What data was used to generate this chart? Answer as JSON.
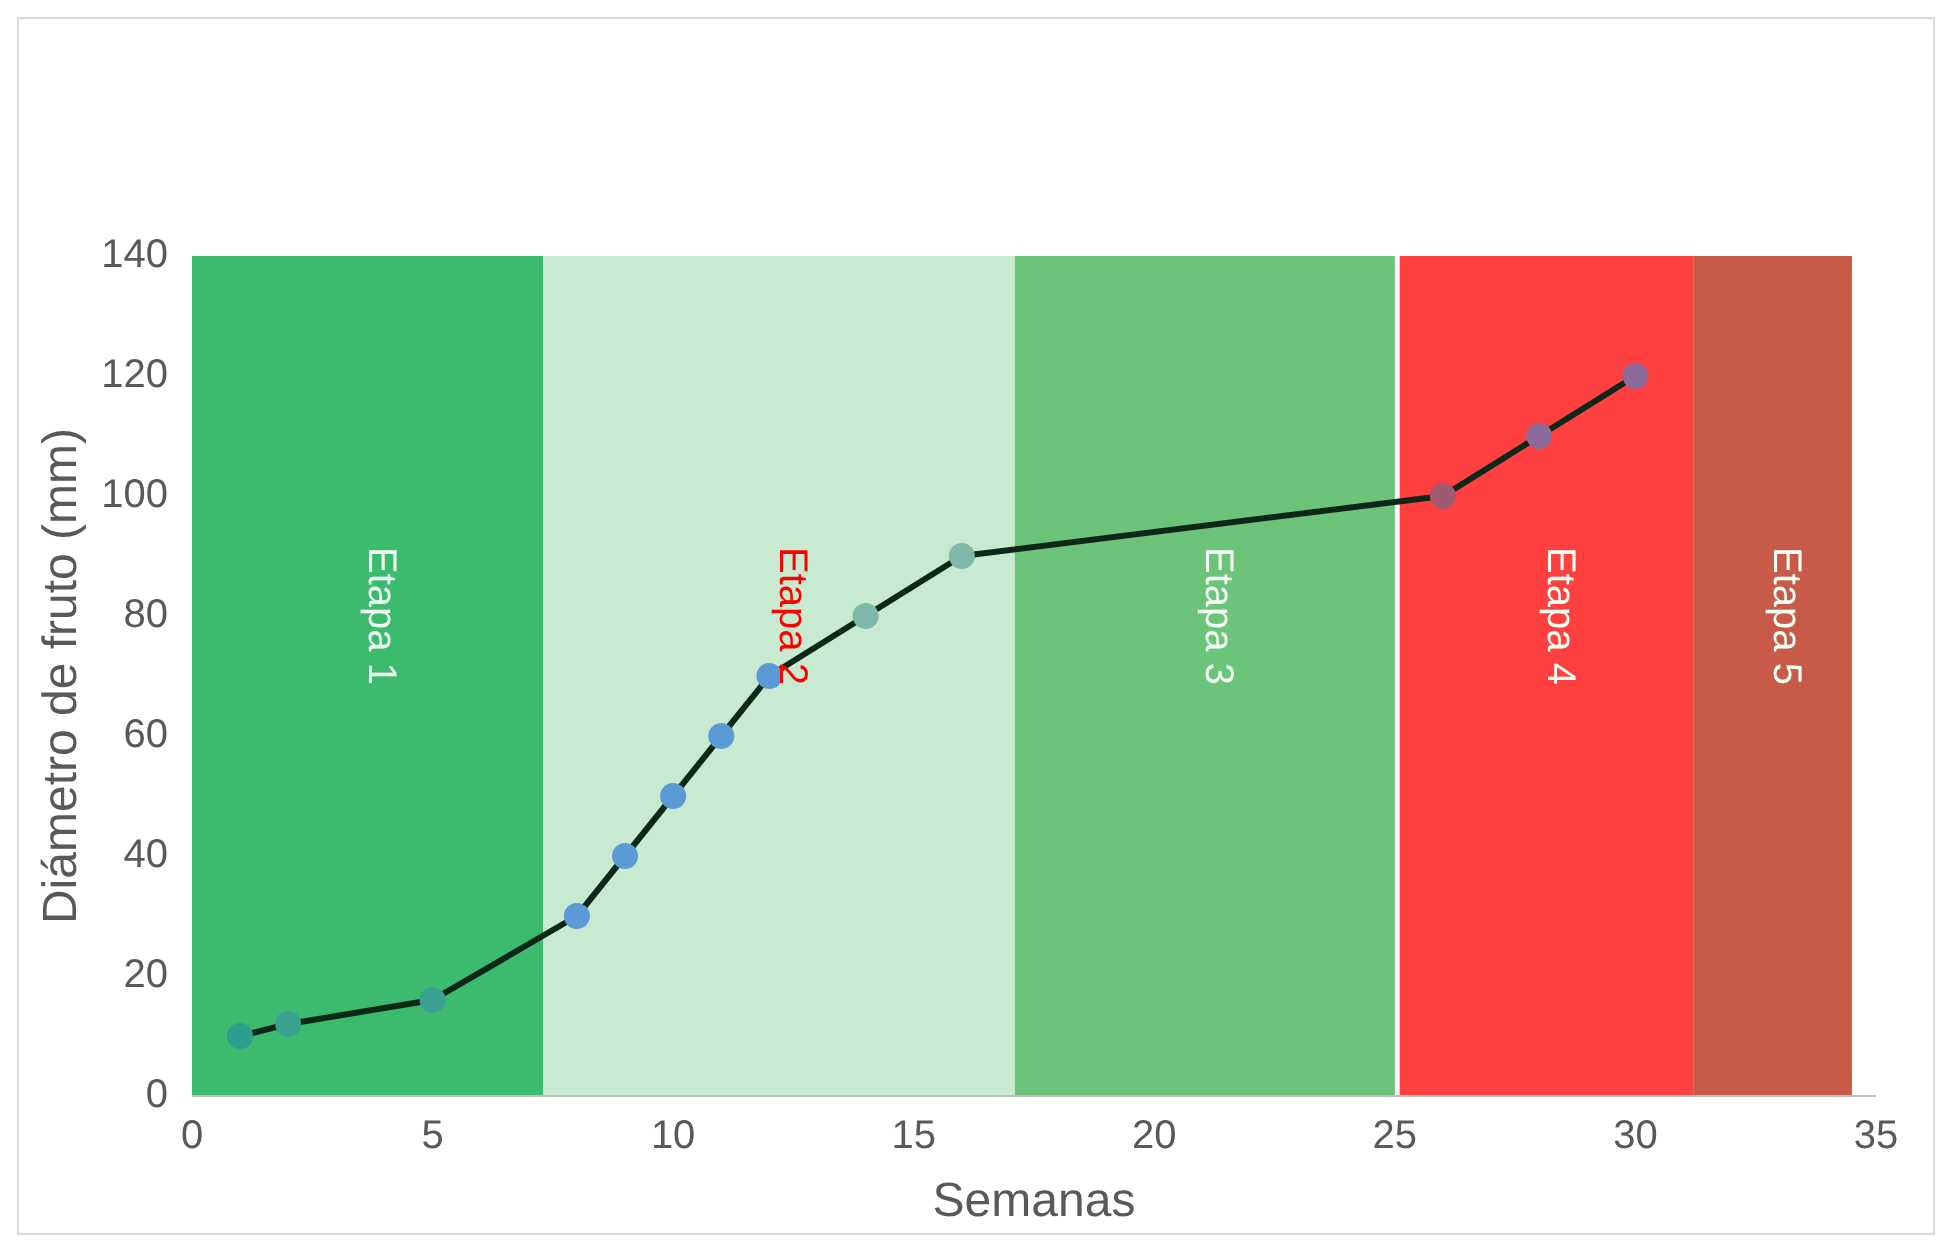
{
  "chart_data": {
    "type": "line",
    "xlabel": "Semanas",
    "ylabel": "Diámetro de fruto (mm)",
    "xlim": [
      0,
      35
    ],
    "xticks": [
      0,
      5,
      10,
      15,
      20,
      25,
      30,
      35
    ],
    "ylim": [
      0,
      140
    ],
    "yticks": [
      0,
      20,
      40,
      60,
      80,
      100,
      120,
      140
    ],
    "grid": false,
    "marker": "circle",
    "line_style": "solid",
    "series": [
      {
        "color": "#0d2818",
        "x": [
          1,
          2,
          5,
          8,
          9,
          10,
          11,
          12,
          14,
          16,
          26,
          28,
          30
        ],
        "values": [
          10,
          12,
          16,
          30,
          40,
          50,
          60,
          70,
          80,
          90,
          100,
          110,
          120
        ],
        "colors": [
          "#2e9e8e",
          "#3aa090",
          "#3aa090",
          "#5b9bd5",
          "#5b9bd5",
          "#5b9bd5",
          "#5b9bd5",
          "#5b9bd5",
          "#7fb8a8",
          "#7fb8a8",
          "#a05a70",
          "#8e6a9a",
          "#8e6a9a"
        ]
      }
    ],
    "bands": [
      {
        "axis": "x",
        "from": 0,
        "to": 7.3,
        "label": "Etapa 1",
        "color": "#3cba6e"
      },
      {
        "axis": "x",
        "from": 7.3,
        "to": 17.1,
        "label": "Etapa 2",
        "color": "#c8ead0"
      },
      {
        "axis": "x",
        "from": 17.1,
        "to": 25,
        "label": "Etapa 3",
        "color": "#6cc47a"
      },
      {
        "axis": "x",
        "from": 25.1,
        "to": 31.2,
        "label": "Etapa 4",
        "color": "#ff4040"
      },
      {
        "axis": "x",
        "from": 31.2,
        "to": 34.5,
        "label": "Etapa 5",
        "color": "#c85a4a"
      }
    ]
  }
}
